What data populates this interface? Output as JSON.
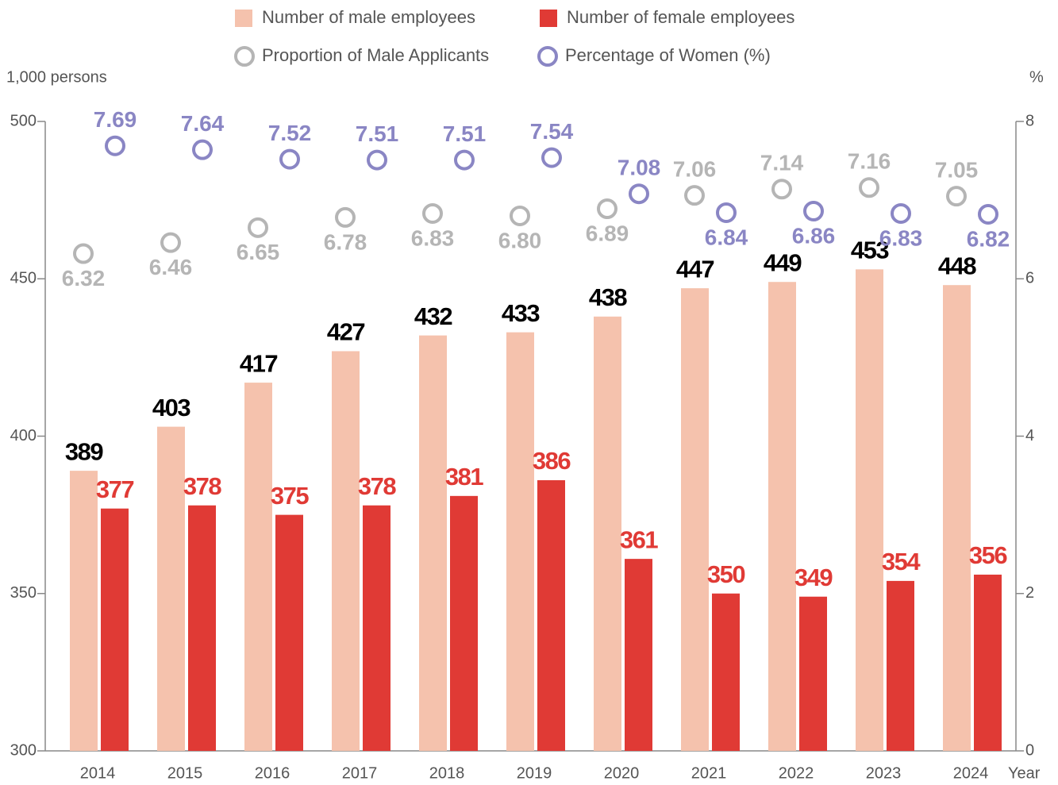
{
  "chart_data": {
    "type": "bar",
    "categories": [
      "2014",
      "2015",
      "2016",
      "2017",
      "2018",
      "2019",
      "2020",
      "2021",
      "2022",
      "2023",
      "2024"
    ],
    "series": [
      {
        "name": "Number of male employees",
        "color": "#f5c2ad",
        "label_color": "#000000",
        "values": [
          389,
          403,
          417,
          427,
          432,
          433,
          438,
          447,
          449,
          453,
          448
        ]
      },
      {
        "name": "Number of female employees",
        "color": "#e03a35",
        "label_color": "#e03a35",
        "values": [
          377,
          378,
          375,
          378,
          381,
          386,
          361,
          350,
          349,
          354,
          356
        ]
      },
      {
        "name": "Proportion of Male Applicants",
        "type": "scatter",
        "axis": "y2",
        "color": "#b5b5b5",
        "values": [
          6.32,
          6.46,
          6.65,
          6.78,
          6.83,
          6.8,
          6.89,
          7.06,
          7.14,
          7.16,
          7.05
        ],
        "value_labels": [
          "6.32",
          "6.46",
          "6.65",
          "6.78",
          "6.83",
          "6.80",
          "6.89",
          "7.06",
          "7.14",
          "7.16",
          "7.05"
        ]
      },
      {
        "name": "Percentage of Women (%)",
        "type": "scatter",
        "axis": "y2",
        "color": "#8a86c4",
        "values": [
          7.69,
          7.64,
          7.52,
          7.51,
          7.51,
          7.54,
          7.08,
          6.84,
          6.86,
          6.83,
          6.82
        ],
        "value_labels": [
          "7.69",
          "7.64",
          "7.52",
          "7.51",
          "7.51",
          "7.54",
          "7.08",
          "6.84",
          "6.86",
          "6.83",
          "6.82"
        ]
      }
    ],
    "y_label": "1,000 persons",
    "y2_label": "%",
    "x_label": "Year",
    "ylim": [
      300,
      500
    ],
    "yticks": [
      300,
      350,
      400,
      450,
      500
    ],
    "y2lim": [
      0,
      8
    ],
    "y2ticks": [
      0,
      2,
      4,
      6,
      8
    ],
    "grid": false,
    "legend": "top"
  }
}
